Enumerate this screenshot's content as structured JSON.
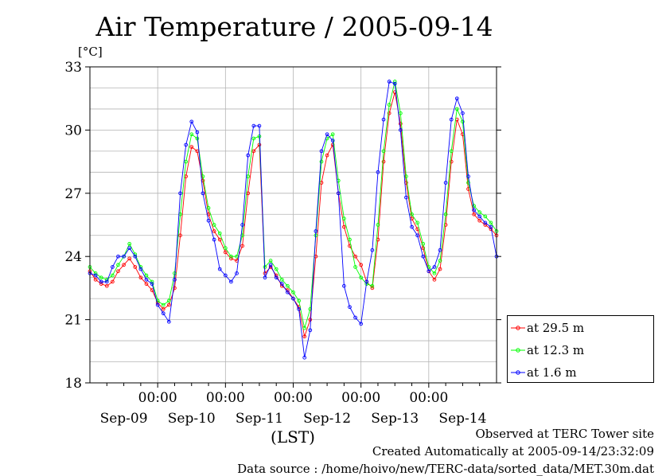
{
  "title": "Air Temperature / 2005-09-14",
  "footer": {
    "line1": "Observed at TERC Tower site",
    "line2": "Created Automatically at 2005-09-14/23:32:09",
    "line3": "Data source : /home/hoivo/new/TERC-data/sorted_data/MET.30m.dat"
  },
  "chart_data": {
    "type": "line",
    "title": "Air Temperature / 2005-09-14",
    "ylabel": "[°C]",
    "xlabel": "(LST)",
    "ylim": [
      18,
      33
    ],
    "yticks": [
      18,
      21,
      24,
      27,
      30,
      33
    ],
    "xlim_hours": [
      0,
      144
    ],
    "x_unit": "hours since 2005-09-09 00:00 LST",
    "hour_tick_labels": [
      "00:00",
      "00:00",
      "00:00",
      "00:00",
      "00:00"
    ],
    "day_labels": [
      "Sep-09",
      "Sep-10",
      "Sep-11",
      "Sep-12",
      "Sep-13",
      "Sep-14"
    ],
    "grid": true,
    "legend_position": "right",
    "series": [
      {
        "name": "at 29.5 m",
        "color": "#ff0000",
        "x": [
          0,
          2,
          4,
          6,
          8,
          10,
          12,
          14,
          16,
          18,
          20,
          22,
          24,
          26,
          28,
          30,
          32,
          34,
          36,
          38,
          40,
          42,
          44,
          46,
          48,
          50,
          52,
          54,
          56,
          58,
          60,
          62,
          64,
          66,
          68,
          70,
          72,
          74,
          76,
          78,
          80,
          82,
          84,
          86,
          88,
          90,
          92,
          94,
          96,
          98,
          100,
          102,
          104,
          106,
          108,
          110,
          112,
          114,
          116,
          118,
          120,
          122,
          124,
          126,
          128,
          130,
          132,
          134,
          136,
          138,
          140,
          142,
          144
        ],
        "y": [
          23.3,
          22.9,
          22.7,
          22.6,
          22.8,
          23.3,
          23.6,
          23.9,
          23.5,
          23.0,
          22.7,
          22.4,
          21.8,
          21.5,
          21.7,
          22.5,
          25.0,
          27.8,
          29.2,
          29.0,
          27.6,
          26.0,
          25.2,
          24.8,
          24.2,
          23.9,
          23.8,
          24.5,
          27.0,
          29.0,
          29.3,
          23.2,
          23.5,
          23.1,
          22.6,
          22.4,
          22.0,
          21.6,
          20.2,
          21.0,
          24.0,
          27.5,
          28.8,
          29.3,
          27.0,
          25.4,
          24.5,
          24.0,
          23.6,
          22.8,
          22.5,
          24.8,
          28.5,
          30.8,
          31.8,
          30.3,
          27.5,
          25.8,
          25.3,
          24.4,
          23.3,
          22.9,
          23.4,
          25.5,
          28.5,
          30.5,
          29.8,
          27.2,
          26.0,
          25.7,
          25.5,
          25.3,
          25.0
        ]
      },
      {
        "name": "at 12.3 m",
        "color": "#00ff00",
        "x": [
          0,
          2,
          4,
          6,
          8,
          10,
          12,
          14,
          16,
          18,
          20,
          22,
          24,
          26,
          28,
          30,
          32,
          34,
          36,
          38,
          40,
          42,
          44,
          46,
          48,
          50,
          52,
          54,
          56,
          58,
          60,
          62,
          64,
          66,
          68,
          70,
          72,
          74,
          76,
          78,
          80,
          82,
          84,
          86,
          88,
          90,
          92,
          94,
          96,
          98,
          100,
          102,
          104,
          106,
          108,
          110,
          112,
          114,
          116,
          118,
          120,
          122,
          124,
          126,
          128,
          130,
          132,
          134,
          136,
          138,
          140,
          142,
          144
        ],
        "y": [
          23.5,
          23.2,
          23.0,
          22.9,
          23.1,
          23.6,
          24.0,
          24.6,
          24.1,
          23.5,
          23.1,
          22.8,
          21.9,
          21.7,
          21.9,
          23.2,
          26.0,
          28.5,
          29.8,
          29.6,
          27.8,
          26.3,
          25.5,
          25.1,
          24.4,
          24.0,
          24.0,
          25.0,
          27.8,
          29.6,
          29.7,
          23.5,
          23.8,
          23.4,
          22.9,
          22.6,
          22.3,
          21.9,
          20.6,
          21.5,
          25.0,
          28.5,
          29.6,
          29.8,
          27.6,
          25.8,
          24.8,
          23.5,
          23.0,
          22.7,
          22.6,
          25.5,
          29.0,
          31.2,
          32.3,
          30.8,
          27.8,
          26.0,
          25.6,
          24.6,
          23.5,
          23.2,
          23.8,
          26.0,
          29.0,
          31.0,
          30.4,
          27.5,
          26.4,
          26.1,
          25.9,
          25.6,
          25.2
        ]
      },
      {
        "name": "at 1.6 m",
        "color": "#0000ff",
        "x": [
          0,
          2,
          4,
          6,
          8,
          10,
          12,
          14,
          16,
          18,
          20,
          22,
          24,
          26,
          28,
          30,
          32,
          34,
          36,
          38,
          40,
          42,
          44,
          46,
          48,
          50,
          52,
          54,
          56,
          58,
          60,
          62,
          64,
          66,
          68,
          70,
          72,
          74,
          76,
          78,
          80,
          82,
          84,
          86,
          88,
          90,
          92,
          94,
          96,
          98,
          100,
          102,
          104,
          106,
          108,
          110,
          112,
          114,
          116,
          118,
          120,
          122,
          124,
          126,
          128,
          130,
          132,
          134,
          136,
          138,
          140,
          142,
          144
        ],
        "y": [
          23.2,
          23.1,
          22.8,
          22.8,
          23.5,
          24.0,
          24.0,
          24.4,
          24.0,
          23.4,
          22.9,
          22.7,
          21.7,
          21.3,
          20.9,
          22.9,
          27.0,
          29.3,
          30.4,
          29.9,
          27.0,
          25.7,
          24.8,
          23.4,
          23.1,
          22.8,
          23.2,
          25.5,
          28.8,
          30.2,
          30.2,
          23.0,
          23.6,
          23.0,
          22.7,
          22.3,
          22.0,
          21.5,
          19.2,
          20.5,
          25.2,
          29.0,
          29.8,
          29.5,
          27.0,
          22.6,
          21.6,
          21.1,
          20.8,
          22.8,
          24.3,
          28.0,
          30.5,
          32.3,
          32.2,
          30.0,
          26.8,
          25.4,
          25.0,
          24.0,
          23.3,
          23.5,
          24.3,
          27.5,
          30.5,
          31.5,
          30.8,
          27.8,
          26.2,
          25.9,
          25.6,
          25.4,
          24.0
        ]
      }
    ]
  }
}
